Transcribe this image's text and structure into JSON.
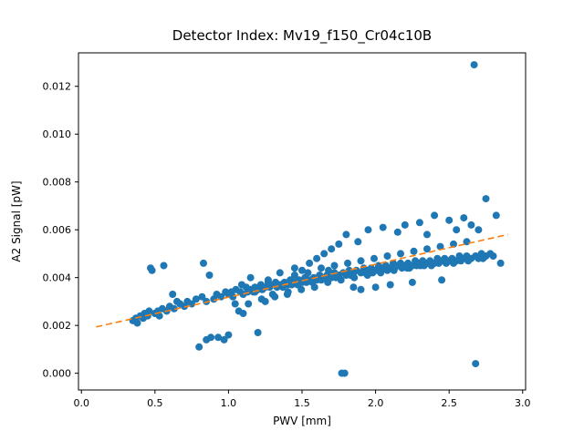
{
  "figure": {
    "title": "Detector Index: Mv19_f150_Cr04c10B"
  },
  "chart_data": {
    "type": "scatter",
    "title": "Detector Index: Mv19_f150_Cr04c10B",
    "xlabel": "PWV [mm]",
    "ylabel": "A2 Signal [pW]",
    "xlim": [
      -0.02,
      3.02
    ],
    "ylim": [
      -0.0007,
      0.0134
    ],
    "x_ticks": [
      0.0,
      0.5,
      1.0,
      1.5,
      2.0,
      2.5,
      3.0
    ],
    "x_tick_labels": [
      "0.0",
      "0.5",
      "1.0",
      "1.5",
      "2.0",
      "2.5",
      "3.0"
    ],
    "y_ticks": [
      0.0,
      0.002,
      0.004,
      0.006,
      0.008,
      0.01,
      0.012
    ],
    "y_tick_labels": [
      "0.000",
      "0.002",
      "0.004",
      "0.006",
      "0.008",
      "0.010",
      "0.012"
    ],
    "grid": false,
    "legend": "none",
    "marker_color": "#1f77b4",
    "trend_line": {
      "style": "dashed",
      "color": "#ff7f0e",
      "x_start": 0.1,
      "x_end": 2.9,
      "slope": 0.00138,
      "intercept": 0.0018
    },
    "points": [
      [
        0.35,
        0.0022
      ],
      [
        0.37,
        0.0023
      ],
      [
        0.38,
        0.0021
      ],
      [
        0.4,
        0.0024
      ],
      [
        0.42,
        0.0023
      ],
      [
        0.43,
        0.0025
      ],
      [
        0.45,
        0.0024
      ],
      [
        0.46,
        0.0026
      ],
      [
        0.47,
        0.0044
      ],
      [
        0.48,
        0.0043
      ],
      [
        0.5,
        0.0025
      ],
      [
        0.52,
        0.0026
      ],
      [
        0.53,
        0.0024
      ],
      [
        0.55,
        0.0027
      ],
      [
        0.56,
        0.0045
      ],
      [
        0.58,
        0.0026
      ],
      [
        0.6,
        0.0028
      ],
      [
        0.62,
        0.0033
      ],
      [
        0.63,
        0.0027
      ],
      [
        0.65,
        0.003
      ],
      [
        0.67,
        0.0029
      ],
      [
        0.7,
        0.0028
      ],
      [
        0.72,
        0.003
      ],
      [
        0.75,
        0.0029
      ],
      [
        0.78,
        0.0031
      ],
      [
        0.8,
        0.0011
      ],
      [
        0.82,
        0.0032
      ],
      [
        0.83,
        0.0046
      ],
      [
        0.85,
        0.003
      ],
      [
        0.85,
        0.0014
      ],
      [
        0.87,
        0.0041
      ],
      [
        0.88,
        0.0015
      ],
      [
        0.9,
        0.0031
      ],
      [
        0.92,
        0.0033
      ],
      [
        0.93,
        0.0015
      ],
      [
        0.95,
        0.0032
      ],
      [
        0.97,
        0.0014
      ],
      [
        0.98,
        0.0034
      ],
      [
        1.0,
        0.0033
      ],
      [
        1.0,
        0.0016
      ],
      [
        1.02,
        0.0034
      ],
      [
        1.03,
        0.0032
      ],
      [
        1.05,
        0.0035
      ],
      [
        1.07,
        0.0026
      ],
      [
        1.08,
        0.0034
      ],
      [
        1.1,
        0.0033
      ],
      [
        1.1,
        0.0025
      ],
      [
        1.12,
        0.0036
      ],
      [
        1.13,
        0.0034
      ],
      [
        1.15,
        0.0035
      ],
      [
        1.15,
        0.004
      ],
      [
        1.17,
        0.0034
      ],
      [
        1.18,
        0.0036
      ],
      [
        1.2,
        0.0035
      ],
      [
        1.2,
        0.0017
      ],
      [
        1.22,
        0.0037
      ],
      [
        1.23,
        0.0035
      ],
      [
        1.25,
        0.0036
      ],
      [
        1.25,
        0.003
      ],
      [
        1.27,
        0.0038
      ],
      [
        1.28,
        0.0036
      ],
      [
        1.3,
        0.0037
      ],
      [
        1.3,
        0.0033
      ],
      [
        1.32,
        0.0038
      ],
      [
        1.33,
        0.0036
      ],
      [
        1.35,
        0.0037
      ],
      [
        1.35,
        0.0042
      ],
      [
        1.37,
        0.0036
      ],
      [
        1.38,
        0.0038
      ],
      [
        1.4,
        0.0037
      ],
      [
        1.4,
        0.0033
      ],
      [
        1.42,
        0.0039
      ],
      [
        1.43,
        0.0037
      ],
      [
        1.45,
        0.0038
      ],
      [
        1.45,
        0.0044
      ],
      [
        1.47,
        0.0037
      ],
      [
        1.48,
        0.0039
      ],
      [
        1.5,
        0.0038
      ],
      [
        1.5,
        0.0043
      ],
      [
        1.52,
        0.004
      ],
      [
        1.53,
        0.0038
      ],
      [
        1.55,
        0.0039
      ],
      [
        1.55,
        0.0046
      ],
      [
        1.57,
        0.0038
      ],
      [
        1.58,
        0.004
      ],
      [
        1.6,
        0.0039
      ],
      [
        1.6,
        0.0048
      ],
      [
        1.62,
        0.0041
      ],
      [
        1.63,
        0.0039
      ],
      [
        1.65,
        0.004
      ],
      [
        1.65,
        0.005
      ],
      [
        1.67,
        0.0041
      ],
      [
        1.68,
        0.0043
      ],
      [
        1.7,
        0.004
      ],
      [
        1.7,
        0.0052
      ],
      [
        1.72,
        0.0042
      ],
      [
        1.73,
        0.004
      ],
      [
        1.75,
        0.0041
      ],
      [
        1.75,
        0.0054
      ],
      [
        1.77,
        0.0
      ],
      [
        1.78,
        0.0042
      ],
      [
        1.79,
        0.0
      ],
      [
        1.8,
        0.0041
      ],
      [
        1.8,
        0.0058
      ],
      [
        1.82,
        0.0043
      ],
      [
        1.83,
        0.0041
      ],
      [
        1.85,
        0.0042
      ],
      [
        1.85,
        0.0036
      ],
      [
        1.87,
        0.0043
      ],
      [
        1.88,
        0.0055
      ],
      [
        1.9,
        0.0042
      ],
      [
        1.9,
        0.0035
      ],
      [
        1.92,
        0.0044
      ],
      [
        1.93,
        0.0042
      ],
      [
        1.95,
        0.0043
      ],
      [
        1.95,
        0.006
      ],
      [
        1.97,
        0.0044
      ],
      [
        1.98,
        0.0042
      ],
      [
        2.0,
        0.0043
      ],
      [
        2.0,
        0.0036
      ],
      [
        2.02,
        0.0045
      ],
      [
        2.03,
        0.0043
      ],
      [
        2.05,
        0.0044
      ],
      [
        2.05,
        0.0061
      ],
      [
        2.07,
        0.0045
      ],
      [
        2.08,
        0.0043
      ],
      [
        2.1,
        0.0044
      ],
      [
        2.1,
        0.0037
      ],
      [
        2.12,
        0.0046
      ],
      [
        2.13,
        0.0044
      ],
      [
        2.15,
        0.0045
      ],
      [
        2.15,
        0.0059
      ],
      [
        2.17,
        0.0046
      ],
      [
        2.18,
        0.0044
      ],
      [
        2.2,
        0.0045
      ],
      [
        2.2,
        0.0062
      ],
      [
        2.22,
        0.0046
      ],
      [
        2.23,
        0.0044
      ],
      [
        2.25,
        0.0045
      ],
      [
        2.25,
        0.0038
      ],
      [
        2.27,
        0.0047
      ],
      [
        2.28,
        0.0045
      ],
      [
        2.3,
        0.0046
      ],
      [
        2.3,
        0.0063
      ],
      [
        2.32,
        0.0047
      ],
      [
        2.33,
        0.0045
      ],
      [
        2.35,
        0.0046
      ],
      [
        2.35,
        0.0058
      ],
      [
        2.37,
        0.0047
      ],
      [
        2.38,
        0.0045
      ],
      [
        2.4,
        0.0046
      ],
      [
        2.4,
        0.0066
      ],
      [
        2.42,
        0.0048
      ],
      [
        2.43,
        0.0046
      ],
      [
        2.45,
        0.0047
      ],
      [
        2.45,
        0.0039
      ],
      [
        2.47,
        0.0048
      ],
      [
        2.48,
        0.0046
      ],
      [
        2.5,
        0.0047
      ],
      [
        2.5,
        0.0064
      ],
      [
        2.52,
        0.0048
      ],
      [
        2.53,
        0.0046
      ],
      [
        2.55,
        0.0047
      ],
      [
        2.55,
        0.006
      ],
      [
        2.57,
        0.0049
      ],
      [
        2.58,
        0.0047
      ],
      [
        2.6,
        0.0048
      ],
      [
        2.6,
        0.0065
      ],
      [
        2.62,
        0.0049
      ],
      [
        2.63,
        0.0047
      ],
      [
        2.65,
        0.0048
      ],
      [
        2.65,
        0.0062
      ],
      [
        2.67,
        0.0129
      ],
      [
        2.68,
        0.0004
      ],
      [
        2.68,
        0.0049
      ],
      [
        2.7,
        0.0048
      ],
      [
        2.7,
        0.006
      ],
      [
        2.72,
        0.005
      ],
      [
        2.73,
        0.0048
      ],
      [
        2.75,
        0.0049
      ],
      [
        2.75,
        0.0073
      ],
      [
        2.78,
        0.005
      ],
      [
        2.8,
        0.0049
      ],
      [
        2.82,
        0.0066
      ],
      [
        2.85,
        0.0046
      ],
      [
        1.0,
        0.0033
      ],
      [
        1.045,
        0.0029
      ],
      [
        1.09,
        0.0037
      ],
      [
        1.135,
        0.0029
      ],
      [
        1.18,
        0.0034
      ],
      [
        1.225,
        0.0031
      ],
      [
        1.27,
        0.0039
      ],
      [
        1.315,
        0.0032
      ],
      [
        1.36,
        0.0037
      ],
      [
        1.405,
        0.0034
      ],
      [
        1.45,
        0.0041
      ],
      [
        1.495,
        0.0035
      ],
      [
        1.54,
        0.0042
      ],
      [
        1.585,
        0.0036
      ],
      [
        1.63,
        0.0044
      ],
      [
        1.675,
        0.0038
      ],
      [
        1.72,
        0.0045
      ],
      [
        1.765,
        0.0039
      ],
      [
        1.81,
        0.0046
      ],
      [
        1.855,
        0.004
      ],
      [
        1.9,
        0.0047
      ],
      [
        1.945,
        0.0041
      ],
      [
        1.99,
        0.0048
      ],
      [
        2.035,
        0.0042
      ],
      [
        2.08,
        0.0049
      ],
      [
        2.125,
        0.0043
      ],
      [
        2.17,
        0.005
      ],
      [
        2.215,
        0.0044
      ],
      [
        2.26,
        0.0051
      ],
      [
        2.305,
        0.0045
      ],
      [
        2.35,
        0.0052
      ],
      [
        2.395,
        0.0046
      ],
      [
        2.44,
        0.0053
      ],
      [
        2.485,
        0.0047
      ],
      [
        2.53,
        0.0054
      ],
      [
        2.575,
        0.0048
      ],
      [
        2.62,
        0.0055
      ]
    ]
  }
}
